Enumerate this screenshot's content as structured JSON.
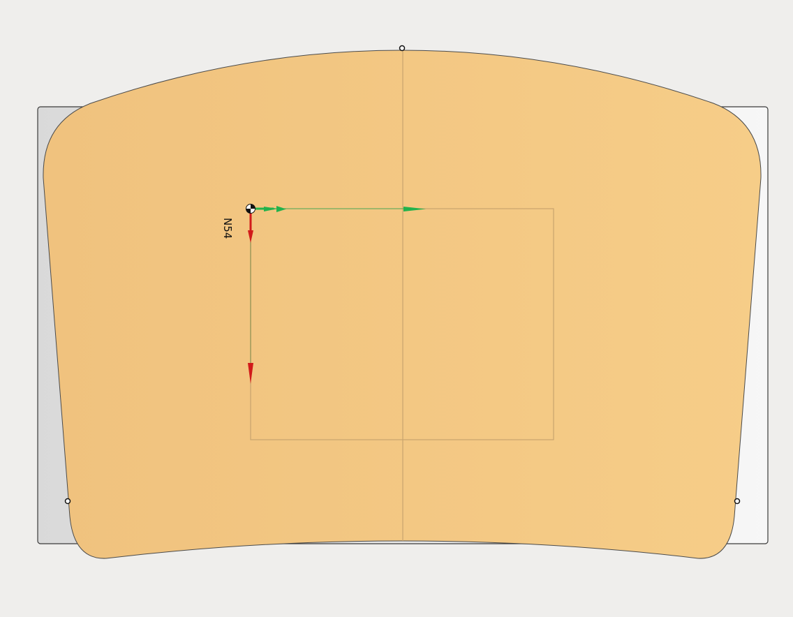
{
  "viewport": {
    "background": "#efeeec"
  },
  "stock": {
    "fill": "#e2e2e2",
    "stroke": "#3a3a3a"
  },
  "part": {
    "fill": "#f2c47f",
    "stroke": "#4a4a4a",
    "centerline_color": "#c8a46e"
  },
  "origin": {
    "label": "N54",
    "x_axis_color": "#22b24c",
    "y_axis_color": "#d11a1a",
    "icon": "origin-checker-icon"
  },
  "bounds_rect": {
    "stroke": "#c8a46e"
  },
  "hole_markers": {
    "icon": "hole-circle-icon"
  }
}
